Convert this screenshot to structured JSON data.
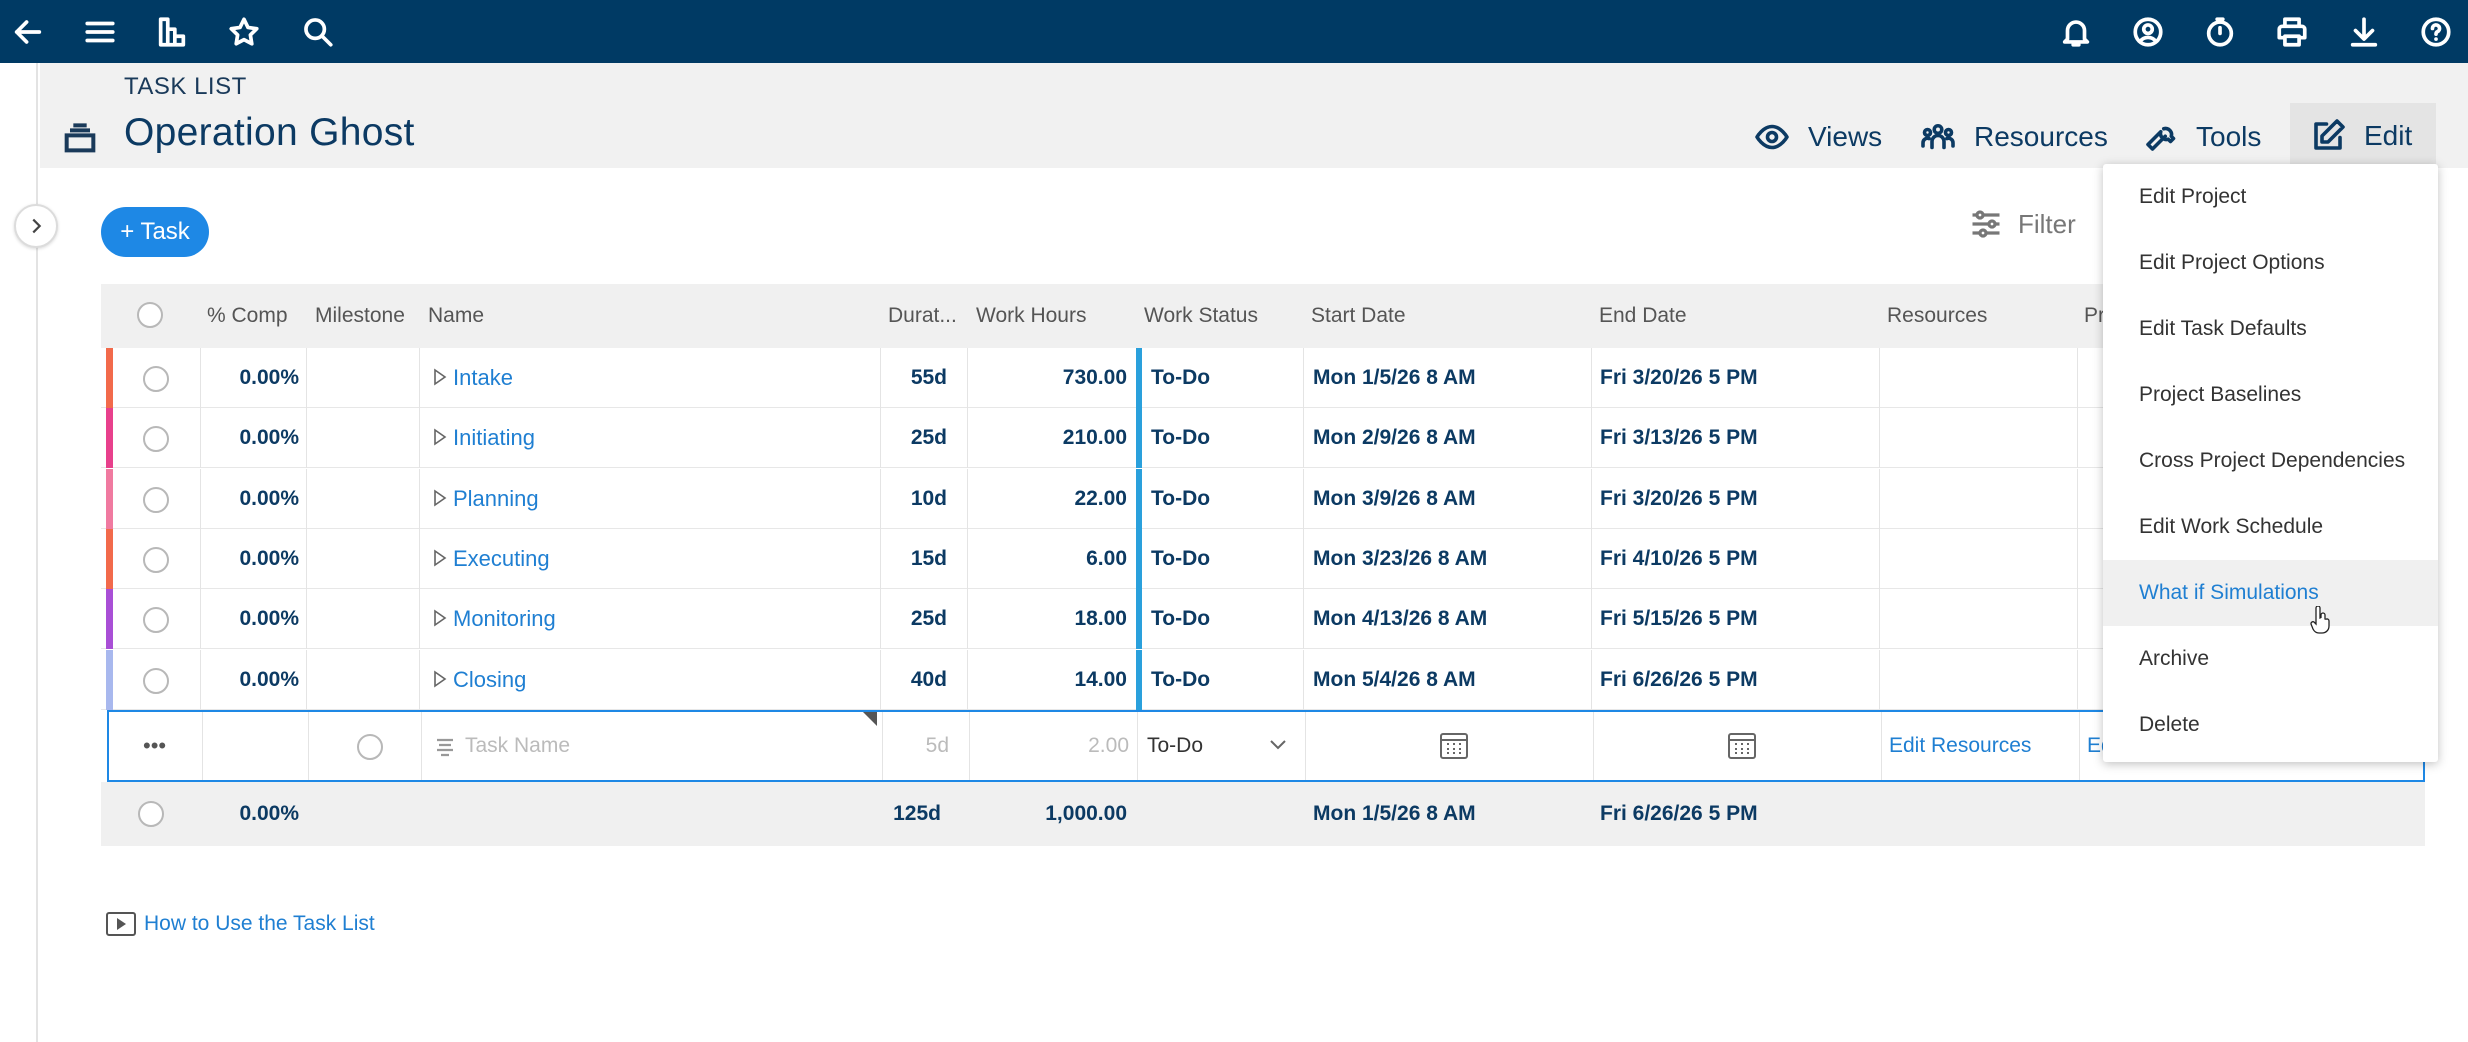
{
  "topbar": {
    "left_icons": [
      "back-arrow-icon",
      "menu-icon",
      "reports-icon",
      "star-icon",
      "search-icon"
    ],
    "right_icons": [
      "bell-icon",
      "user-circle-icon",
      "timer-icon",
      "print-icon",
      "download-icon",
      "help-icon"
    ]
  },
  "header": {
    "breadcrumb": "TASK LIST",
    "title": "Operation Ghost",
    "views_label": "Views",
    "resources_label": "Resources",
    "tools_label": "Tools",
    "edit_label": "Edit"
  },
  "toolbar": {
    "add_task_label": "+ Task",
    "filter_label": "Filter"
  },
  "table": {
    "columns": {
      "comp": "% Comp",
      "milestone": "Milestone",
      "name": "Name",
      "duration": "Durat...",
      "work_hours": "Work Hours",
      "work_status": "Work Status",
      "start_date": "Start Date",
      "end_date": "End Date",
      "resources": "Resources",
      "pr": "Pr"
    },
    "rows": [
      {
        "comp": "0.00%",
        "name": "Intake",
        "duration": "55d",
        "hours": "730.00",
        "status": "To-Do",
        "start": "Mon 1/5/26 8 AM",
        "end": "Fri 3/20/26 5 PM",
        "color": "#f26a4b"
      },
      {
        "comp": "0.00%",
        "name": "Initiating",
        "duration": "25d",
        "hours": "210.00",
        "status": "To-Do",
        "start": "Mon 2/9/26 8 AM",
        "end": "Fri 3/13/26 5 PM",
        "color": "#e8408c"
      },
      {
        "comp": "0.00%",
        "name": "Planning",
        "duration": "10d",
        "hours": "22.00",
        "status": "To-Do",
        "start": "Mon 3/9/26 8 AM",
        "end": "Fri 3/20/26 5 PM",
        "color": "#f07aa0"
      },
      {
        "comp": "0.00%",
        "name": "Executing",
        "duration": "15d",
        "hours": "6.00",
        "status": "To-Do",
        "start": "Mon 3/23/26 8 AM",
        "end": "Fri 4/10/26 5 PM",
        "color": "#f26a4b"
      },
      {
        "comp": "0.00%",
        "name": "Monitoring",
        "duration": "25d",
        "hours": "18.00",
        "status": "To-Do",
        "start": "Mon 4/13/26 8 AM",
        "end": "Fri 5/15/26 5 PM",
        "color": "#a94fd6"
      },
      {
        "comp": "0.00%",
        "name": "Closing",
        "duration": "40d",
        "hours": "14.00",
        "status": "To-Do",
        "start": "Mon 5/4/26 8 AM",
        "end": "Fri 6/26/26 5 PM",
        "color": "#a8b8ee"
      }
    ],
    "new_row": {
      "more_label": "•••",
      "name_placeholder": "Task Name",
      "duration": "5d",
      "hours": "2.00",
      "status": "To-Do",
      "edit_resources": "Edit Resources",
      "edit_pr": "Ed"
    },
    "totals": {
      "comp": "0.00%",
      "duration": "125d",
      "hours": "1,000.00",
      "start": "Mon 1/5/26 8 AM",
      "end": "Fri 6/26/26 5 PM"
    }
  },
  "footer": {
    "howto_label": "How to Use the Task List"
  },
  "edit_menu": {
    "items": [
      "Edit Project",
      "Edit Project Options",
      "Edit Task Defaults",
      "Project Baselines",
      "Cross Project Dependencies",
      "Edit Work Schedule",
      "What if Simulations",
      "Archive",
      "Delete"
    ],
    "hovered_index": 6
  }
}
